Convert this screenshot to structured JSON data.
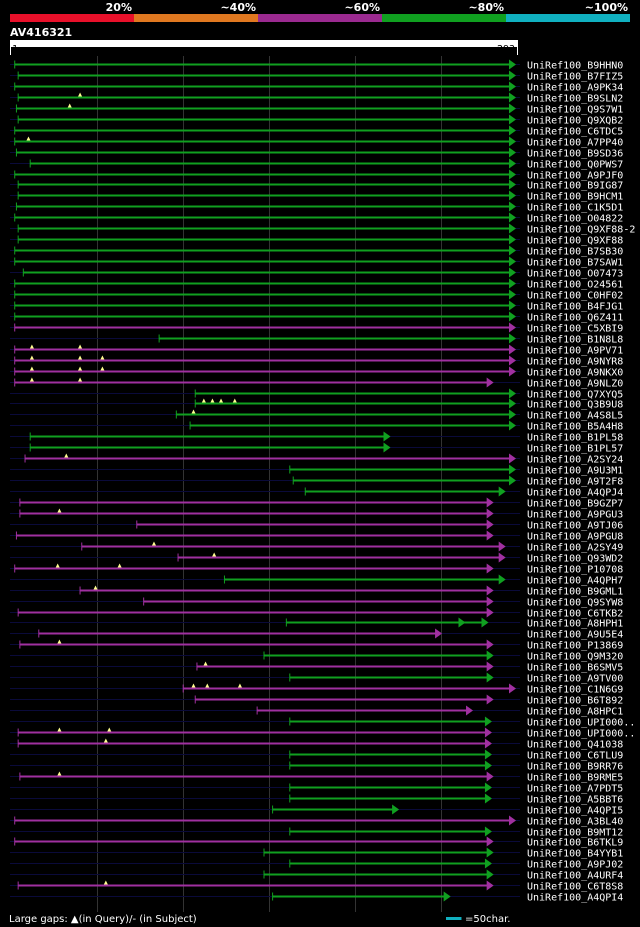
{
  "chart_data": {
    "type": "alignment-map",
    "query": {
      "name": "AV416321",
      "start": 1,
      "end": 293
    },
    "legend": {
      "items": [
        {
          "label": "20%",
          "color": "#e8102a"
        },
        {
          "label": "~40%",
          "color": "#e07820"
        },
        {
          "label": "~60%",
          "color": "#9b2a90"
        },
        {
          "label": "~80%",
          "color": "#10a020"
        },
        {
          "label": "~100%",
          "color": "#10b0c0"
        }
      ]
    },
    "hits": [
      {
        "id": "UniRef100_B9HHN0",
        "start": 2,
        "end": 293,
        "color": "green",
        "qgaps": [],
        "arrow": 1
      },
      {
        "id": "UniRef100_B7FIZ5",
        "start": 4,
        "end": 293,
        "color": "green",
        "qgaps": [],
        "arrow": 1
      },
      {
        "id": "UniRef100_A9PK34",
        "start": 2,
        "end": 293,
        "color": "green",
        "qgaps": [],
        "arrow": 1
      },
      {
        "id": "UniRef100_B9SLN2",
        "start": 4,
        "end": 293,
        "color": "green",
        "qgaps": [
          40
        ],
        "arrow": 1
      },
      {
        "id": "UniRef100_Q9S7W1",
        "start": 3,
        "end": 293,
        "color": "green",
        "qgaps": [
          34
        ],
        "arrow": 1
      },
      {
        "id": "UniRef100_Q9XQB2",
        "start": 4,
        "end": 293,
        "color": "green",
        "qgaps": [],
        "arrow": 1
      },
      {
        "id": "UniRef100_C6TDC5",
        "start": 2,
        "end": 293,
        "color": "green",
        "qgaps": [],
        "arrow": 1
      },
      {
        "id": "UniRef100_A7PP40",
        "start": 2,
        "end": 293,
        "color": "green",
        "qgaps": [
          10
        ],
        "arrow": 1
      },
      {
        "id": "UniRef100_B9SD36",
        "start": 3,
        "end": 293,
        "color": "green",
        "qgaps": [],
        "arrow": 1
      },
      {
        "id": "UniRef100_Q0PWS7",
        "start": 11,
        "end": 293,
        "color": "green",
        "qgaps": [],
        "arrow": 1
      },
      {
        "id": "UniRef100_A9PJF0",
        "start": 2,
        "end": 293,
        "color": "green",
        "qgaps": [],
        "arrow": 1
      },
      {
        "id": "UniRef100_B9IG87",
        "start": 4,
        "end": 293,
        "color": "green",
        "qgaps": [],
        "arrow": 1
      },
      {
        "id": "UniRef100_B9HCM1",
        "start": 4,
        "end": 293,
        "color": "green",
        "qgaps": [],
        "arrow": 1
      },
      {
        "id": "UniRef100_C1K5D1",
        "start": 3,
        "end": 293,
        "color": "green",
        "qgaps": [],
        "arrow": 1
      },
      {
        "id": "UniRef100_O04822",
        "start": 2,
        "end": 293,
        "color": "green",
        "qgaps": [],
        "arrow": 1
      },
      {
        "id": "UniRef100_Q9XF88-2",
        "start": 4,
        "end": 293,
        "color": "green",
        "qgaps": [],
        "arrow": 1
      },
      {
        "id": "UniRef100_Q9XF88",
        "start": 4,
        "end": 293,
        "color": "green",
        "qgaps": [],
        "arrow": 1
      },
      {
        "id": "UniRef100_B7SB30",
        "start": 2,
        "end": 293,
        "color": "green",
        "qgaps": [],
        "arrow": 1
      },
      {
        "id": "UniRef100_B7SAW1",
        "start": 2,
        "end": 293,
        "color": "green",
        "qgaps": [],
        "arrow": 1
      },
      {
        "id": "UniRef100_O07473",
        "start": 7,
        "end": 293,
        "color": "green",
        "qgaps": [],
        "arrow": 1
      },
      {
        "id": "UniRef100_O24561",
        "start": 2,
        "end": 293,
        "color": "green",
        "qgaps": [],
        "arrow": 1
      },
      {
        "id": "UniRef100_C0HF02",
        "start": 2,
        "end": 293,
        "color": "green",
        "qgaps": [],
        "arrow": 1
      },
      {
        "id": "UniRef100_B4FJG1",
        "start": 2,
        "end": 293,
        "color": "green",
        "qgaps": [],
        "arrow": 1
      },
      {
        "id": "UniRef100_Q6Z411",
        "start": 2,
        "end": 293,
        "color": "green",
        "qgaps": [],
        "arrow": 1
      },
      {
        "id": "UniRef100_C5XBI9",
        "start": 2,
        "end": 293,
        "color": "purple",
        "qgaps": [],
        "arrow": 1
      },
      {
        "id": "UniRef100_B1N8L8",
        "start": 86,
        "end": 293,
        "color": "green",
        "qgaps": [],
        "arrow": 1
      },
      {
        "id": "UniRef100_A9PV71",
        "start": 2,
        "end": 293,
        "color": "purple",
        "qgaps": [
          12,
          40
        ],
        "arrow": 1
      },
      {
        "id": "UniRef100_A9NYR8",
        "start": 2,
        "end": 293,
        "color": "purple",
        "qgaps": [
          12,
          40,
          53
        ],
        "arrow": 1
      },
      {
        "id": "UniRef100_A9NKX0",
        "start": 2,
        "end": 293,
        "color": "purple",
        "qgaps": [
          12,
          40,
          53
        ],
        "arrow": 1
      },
      {
        "id": "UniRef100_A9NLZ0",
        "start": 2,
        "end": 280,
        "color": "purple",
        "qgaps": [
          12,
          40
        ],
        "arrow": 1
      },
      {
        "id": "UniRef100_Q7XYQ5",
        "start": 107,
        "end": 293,
        "color": "green",
        "qgaps": [],
        "arrow": 1
      },
      {
        "id": "UniRef100_Q3B9U8",
        "start": 107,
        "end": 293,
        "color": "green",
        "qgaps": [
          112,
          117,
          122,
          130
        ],
        "arrow": 1
      },
      {
        "id": "UniRef100_A4S8L5",
        "start": 96,
        "end": 293,
        "color": "green",
        "qgaps": [
          106
        ],
        "arrow": 1
      },
      {
        "id": "UniRef100_B5A4H8",
        "start": 104,
        "end": 293,
        "color": "green",
        "qgaps": [],
        "arrow": 1
      },
      {
        "id": "UniRef100_B1PL58",
        "start": 11,
        "end": 220,
        "color": "green",
        "qgaps": [],
        "arrow": 1
      },
      {
        "id": "UniRef100_B1PL57",
        "start": 11,
        "end": 220,
        "color": "green",
        "qgaps": [],
        "arrow": 1
      },
      {
        "id": "UniRef100_A2SY24",
        "start": 8,
        "end": 293,
        "color": "purple",
        "qgaps": [
          32
        ],
        "arrow": 1
      },
      {
        "id": "UniRef100_A9U3M1",
        "start": 162,
        "end": 293,
        "color": "green",
        "qgaps": [],
        "arrow": 1
      },
      {
        "id": "UniRef100_A9T2F8",
        "start": 164,
        "end": 293,
        "color": "green",
        "qgaps": [],
        "arrow": 1
      },
      {
        "id": "UniRef100_A4QPJ4",
        "start": 171,
        "end": 287,
        "color": "green",
        "qgaps": [],
        "arrow": 1
      },
      {
        "id": "UniRef100_B9GZP7",
        "start": 5,
        "end": 280,
        "color": "purple",
        "qgaps": [],
        "arrow": 1
      },
      {
        "id": "UniRef100_A9PGU3",
        "start": 5,
        "end": 280,
        "color": "purple",
        "qgaps": [
          28
        ],
        "arrow": 1
      },
      {
        "id": "UniRef100_A9TJ06",
        "start": 73,
        "end": 280,
        "color": "purple",
        "qgaps": [],
        "arrow": 1
      },
      {
        "id": "UniRef100_A9PGU8",
        "start": 3,
        "end": 280,
        "color": "purple",
        "qgaps": [],
        "arrow": 1
      },
      {
        "id": "UniRef100_A2SY49",
        "start": 41,
        "end": 287,
        "color": "purple",
        "qgaps": [
          83
        ],
        "arrow": 1
      },
      {
        "id": "UniRef100_Q93WD2",
        "start": 97,
        "end": 287,
        "color": "purple",
        "qgaps": [
          118
        ],
        "arrow": 1
      },
      {
        "id": "UniRef100_P10708",
        "start": 2,
        "end": 280,
        "color": "purple",
        "qgaps": [
          27,
          63
        ],
        "arrow": 1
      },
      {
        "id": "UniRef100_A4QPH7",
        "start": 124,
        "end": 287,
        "color": "green",
        "qgaps": [],
        "arrow": 1
      },
      {
        "id": "UniRef100_B9GML1",
        "start": 40,
        "end": 280,
        "color": "purple",
        "qgaps": [
          49
        ],
        "arrow": 1
      },
      {
        "id": "UniRef100_Q9SYW8",
        "start": 77,
        "end": 280,
        "color": "purple",
        "qgaps": [],
        "arrow": 1
      },
      {
        "id": "UniRef100_C6TKB2",
        "start": 4,
        "end": 280,
        "color": "purple",
        "qgaps": [],
        "arrow": 1
      },
      {
        "id": "UniRef100_A8HPH1",
        "start": 160,
        "end": 277,
        "color": "green",
        "qgaps": [],
        "arrow": 2
      },
      {
        "id": "UniRef100_A9U5E4",
        "start": 16,
        "end": 250,
        "color": "purple",
        "qgaps": [],
        "arrow": 1
      },
      {
        "id": "UniRef100_P13869",
        "start": 5,
        "end": 280,
        "color": "purple",
        "qgaps": [
          28
        ],
        "arrow": 1
      },
      {
        "id": "UniRef100_Q9M320",
        "start": 147,
        "end": 280,
        "color": "green",
        "qgaps": [],
        "arrow": 1
      },
      {
        "id": "UniRef100_B6SMV5",
        "start": 108,
        "end": 280,
        "color": "purple",
        "qgaps": [
          113
        ],
        "arrow": 1
      },
      {
        "id": "UniRef100_A9TV00",
        "start": 162,
        "end": 280,
        "color": "green",
        "qgaps": [],
        "arrow": 1
      },
      {
        "id": "UniRef100_C1N6G9",
        "start": 100,
        "end": 293,
        "color": "purple",
        "qgaps": [
          106,
          114,
          133
        ],
        "arrow": 1
      },
      {
        "id": "UniRef100_B6T892",
        "start": 107,
        "end": 280,
        "color": "purple",
        "qgaps": [],
        "arrow": 1
      },
      {
        "id": "UniRef100_A8HPC1",
        "start": 143,
        "end": 268,
        "color": "purple",
        "qgaps": [],
        "arrow": 1
      },
      {
        "id": "UniRef100_UPI000..",
        "start": 162,
        "end": 279,
        "color": "green",
        "qgaps": [],
        "arrow": 1
      },
      {
        "id": "UniRef100_UPI000..",
        "start": 4,
        "end": 279,
        "color": "purple",
        "qgaps": [
          28,
          57
        ],
        "arrow": 1
      },
      {
        "id": "UniRef100_Q41038",
        "start": 4,
        "end": 279,
        "color": "purple",
        "qgaps": [
          55
        ],
        "arrow": 1
      },
      {
        "id": "UniRef100_C6TLU9",
        "start": 162,
        "end": 279,
        "color": "green",
        "qgaps": [],
        "arrow": 1
      },
      {
        "id": "UniRef100_B9RR76",
        "start": 162,
        "end": 279,
        "color": "green",
        "qgaps": [],
        "arrow": 1
      },
      {
        "id": "UniRef100_B9RME5",
        "start": 5,
        "end": 280,
        "color": "purple",
        "qgaps": [
          28
        ],
        "arrow": 1
      },
      {
        "id": "UniRef100_A7PDT5",
        "start": 162,
        "end": 279,
        "color": "green",
        "qgaps": [],
        "arrow": 1
      },
      {
        "id": "UniRef100_A5BBT6",
        "start": 162,
        "end": 279,
        "color": "green",
        "qgaps": [],
        "arrow": 1
      },
      {
        "id": "UniRef100_A4QPI5",
        "start": 152,
        "end": 225,
        "color": "green",
        "qgaps": [],
        "arrow": 1
      },
      {
        "id": "UniRef100_A3BL40",
        "start": 2,
        "end": 293,
        "color": "purple",
        "qgaps": [],
        "arrow": 1
      },
      {
        "id": "UniRef100_B9MT12",
        "start": 162,
        "end": 279,
        "color": "green",
        "qgaps": [],
        "arrow": 1
      },
      {
        "id": "UniRef100_B6TKL9",
        "start": 2,
        "end": 280,
        "color": "purple",
        "qgaps": [],
        "arrow": 1
      },
      {
        "id": "UniRef100_B4YYB1",
        "start": 147,
        "end": 280,
        "color": "green",
        "qgaps": [],
        "arrow": 1
      },
      {
        "id": "UniRef100_A9PJ02",
        "start": 162,
        "end": 279,
        "color": "green",
        "qgaps": [],
        "arrow": 1
      },
      {
        "id": "UniRef100_A4URF4",
        "start": 147,
        "end": 280,
        "color": "green",
        "qgaps": [],
        "arrow": 1
      },
      {
        "id": "UniRef100_C6T8S8",
        "start": 4,
        "end": 280,
        "color": "purple",
        "qgaps": [
          55
        ],
        "arrow": 1
      },
      {
        "id": "UniRef100_A4QPI4",
        "start": 152,
        "end": 255,
        "color": "green",
        "qgaps": [],
        "arrow": 1
      }
    ],
    "footer": {
      "gaps_text": "Large gaps: ▲(in Query)/- (in Subject)",
      "scale_text": "=50char."
    }
  }
}
